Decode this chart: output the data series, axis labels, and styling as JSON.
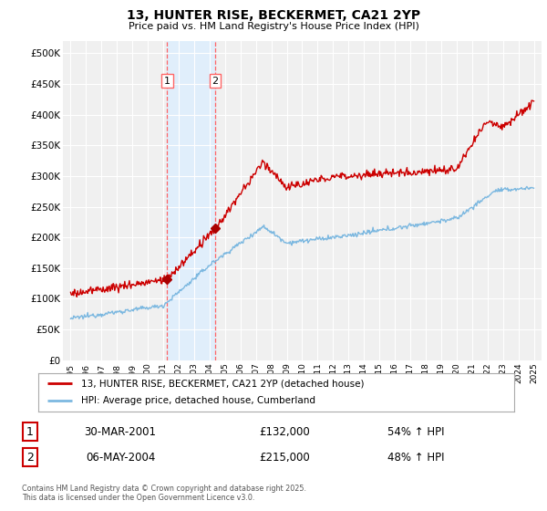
{
  "title": "13, HUNTER RISE, BECKERMET, CA21 2YP",
  "subtitle": "Price paid vs. HM Land Registry's House Price Index (HPI)",
  "legend_line1": "13, HUNTER RISE, BECKERMET, CA21 2YP (detached house)",
  "legend_line2": "HPI: Average price, detached house, Cumberland",
  "transaction1_date": "30-MAR-2001",
  "transaction1_price": "£132,000",
  "transaction1_hpi": "54% ↑ HPI",
  "transaction1_year": 2001.25,
  "transaction1_value": 132000,
  "transaction2_date": "06-MAY-2004",
  "transaction2_price": "£215,000",
  "transaction2_hpi": "48% ↑ HPI",
  "transaction2_year": 2004.37,
  "transaction2_value": 215000,
  "hpi_color": "#7cb8e0",
  "price_color": "#cc0000",
  "marker_color": "#aa0000",
  "shaded_color": "#ddeeff",
  "dashed_color": "#ff6666",
  "background_color": "#f0f0f0",
  "yticks": [
    0,
    50000,
    100000,
    150000,
    200000,
    250000,
    300000,
    350000,
    400000,
    450000,
    500000
  ],
  "ytick_labels": [
    "£0",
    "£50K",
    "£100K",
    "£150K",
    "£200K",
    "£250K",
    "£300K",
    "£350K",
    "£400K",
    "£450K",
    "£500K"
  ],
  "ylim": [
    0,
    520000
  ],
  "xmin": 1994.5,
  "xmax": 2025.5,
  "footnote": "Contains HM Land Registry data © Crown copyright and database right 2025.\nThis data is licensed under the Open Government Licence v3.0."
}
